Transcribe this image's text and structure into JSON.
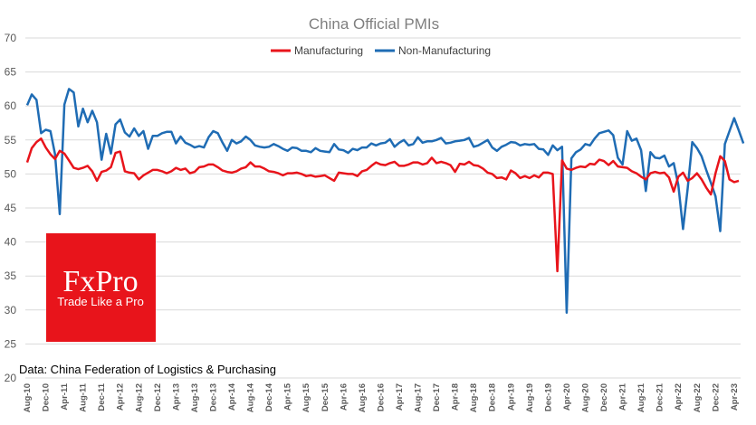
{
  "chart_data": {
    "type": "line",
    "title": "China Official PMIs",
    "ylim": [
      20,
      70
    ],
    "yticks": [
      20,
      25,
      30,
      35,
      40,
      45,
      50,
      55,
      60,
      65,
      70
    ],
    "grid": true,
    "legend_position": "top-center",
    "start_month": "Aug-10",
    "end_month": "Jun-23",
    "x_tick_labels": [
      "Aug-10",
      "Dec-10",
      "Apr-11",
      "Aug-11",
      "Dec-11",
      "Apr-12",
      "Aug-12",
      "Dec-12",
      "Apr-13",
      "Aug-13",
      "Dec-13",
      "Apr-14",
      "Aug-14",
      "Dec-14",
      "Apr-15",
      "Aug-15",
      "Dec-15",
      "Apr-16",
      "Aug-16",
      "Dec-16",
      "Apr-17",
      "Aug-17",
      "Dec-17",
      "Apr-18",
      "Aug-18",
      "Dec-18",
      "Apr-19",
      "Aug-19",
      "Dec-19",
      "Apr-20",
      "Aug-20",
      "Dec-20",
      "Apr-21",
      "Aug-21",
      "Dec-21",
      "Apr-22",
      "Aug-22",
      "Dec-22",
      "Apr-23"
    ],
    "series": [
      {
        "name": "Manufacturing",
        "color": "#e8141b",
        "values": [
          51.7,
          53.8,
          54.7,
          55.2,
          53.9,
          52.9,
          52.2,
          53.4,
          53.0,
          52.0,
          50.9,
          50.7,
          50.9,
          51.2,
          50.4,
          49.0,
          50.3,
          50.5,
          51.0,
          53.1,
          53.3,
          50.4,
          50.2,
          50.1,
          49.2,
          49.8,
          50.2,
          50.6,
          50.6,
          50.4,
          50.1,
          50.4,
          50.9,
          50.6,
          50.8,
          50.1,
          50.3,
          51.0,
          51.1,
          51.4,
          51.4,
          51.0,
          50.5,
          50.3,
          50.2,
          50.4,
          50.8,
          51.0,
          51.7,
          51.1,
          51.1,
          50.8,
          50.4,
          50.3,
          50.1,
          49.8,
          50.1,
          50.1,
          50.2,
          50.0,
          49.7,
          49.8,
          49.6,
          49.7,
          49.8,
          49.4,
          49.0,
          50.2,
          50.1,
          50.0,
          50.0,
          49.7,
          50.4,
          50.6,
          51.2,
          51.7,
          51.4,
          51.3,
          51.6,
          51.8,
          51.2,
          51.2,
          51.4,
          51.7,
          51.7,
          51.4,
          51.6,
          52.4,
          51.6,
          51.8,
          51.6,
          51.3,
          50.3,
          51.5,
          51.4,
          51.8,
          51.3,
          51.2,
          50.8,
          50.2,
          50.0,
          49.4,
          49.5,
          49.2,
          50.5,
          50.1,
          49.4,
          49.7,
          49.4,
          49.8,
          49.5,
          50.2,
          50.2,
          50.0,
          35.7,
          52.0,
          50.8,
          50.6,
          50.9,
          51.1,
          51.0,
          51.5,
          51.4,
          52.1,
          51.9,
          51.3,
          51.9,
          51.1,
          51.0,
          50.9,
          50.4,
          50.1,
          49.6,
          49.2,
          50.1,
          50.3,
          50.1,
          50.2,
          49.5,
          47.4,
          49.6,
          50.2,
          49.0,
          49.4,
          50.1,
          49.2,
          48.0,
          47.0,
          50.1,
          52.6,
          51.9,
          49.2,
          48.8,
          49.0
        ]
      },
      {
        "name": "Non-Manufacturing",
        "color": "#1f6cb4",
        "values": [
          60.1,
          61.7,
          60.9,
          56.0,
          56.5,
          56.3,
          52.9,
          44.1,
          60.2,
          62.5,
          62.0,
          57.0,
          59.6,
          57.6,
          59.3,
          57.6,
          52.1,
          55.9,
          53.0,
          57.3,
          58.0,
          56.1,
          55.5,
          56.7,
          55.6,
          56.3,
          53.7,
          55.6,
          55.6,
          56.0,
          56.2,
          56.2,
          54.5,
          55.5,
          54.6,
          54.3,
          53.9,
          54.1,
          53.9,
          55.4,
          56.3,
          56.0,
          54.6,
          53.4,
          55.0,
          54.5,
          54.8,
          55.5,
          55.0,
          54.2,
          54.0,
          53.9,
          54.0,
          54.4,
          54.1,
          53.7,
          53.4,
          53.9,
          53.8,
          53.4,
          53.4,
          53.2,
          53.8,
          53.4,
          53.3,
          53.2,
          54.4,
          53.6,
          53.5,
          53.1,
          53.7,
          53.5,
          53.9,
          53.9,
          54.5,
          54.2,
          54.5,
          54.6,
          55.1,
          54.0,
          54.6,
          55.0,
          54.2,
          54.4,
          55.4,
          54.6,
          54.8,
          54.8,
          55.0,
          55.3,
          54.5,
          54.6,
          54.8,
          54.9,
          55.0,
          55.3,
          54.0,
          54.2,
          54.6,
          55.0,
          53.9,
          53.4,
          54.0,
          54.3,
          54.7,
          54.6,
          54.2,
          54.4,
          54.3,
          54.4,
          53.7,
          53.6,
          52.8,
          54.2,
          53.5,
          54.0,
          29.6,
          52.3,
          53.2,
          53.6,
          54.4,
          54.2,
          55.2,
          56.0,
          56.2,
          56.4,
          55.7,
          52.4,
          51.4,
          56.3,
          54.9,
          55.2,
          53.5,
          47.5,
          53.2,
          52.4,
          52.3,
          52.7,
          51.1,
          51.6,
          48.4,
          41.9,
          47.8,
          54.7,
          53.8,
          52.6,
          50.6,
          48.7,
          46.7,
          41.6,
          54.4,
          56.3,
          58.2,
          56.4,
          54.5
        ]
      }
    ],
    "source": "Data: China Federation of Logistics & Purchasing",
    "logo": {
      "name": "FxPro",
      "tagline": "Trade Like a Pro",
      "color": "#e8141b"
    }
  }
}
